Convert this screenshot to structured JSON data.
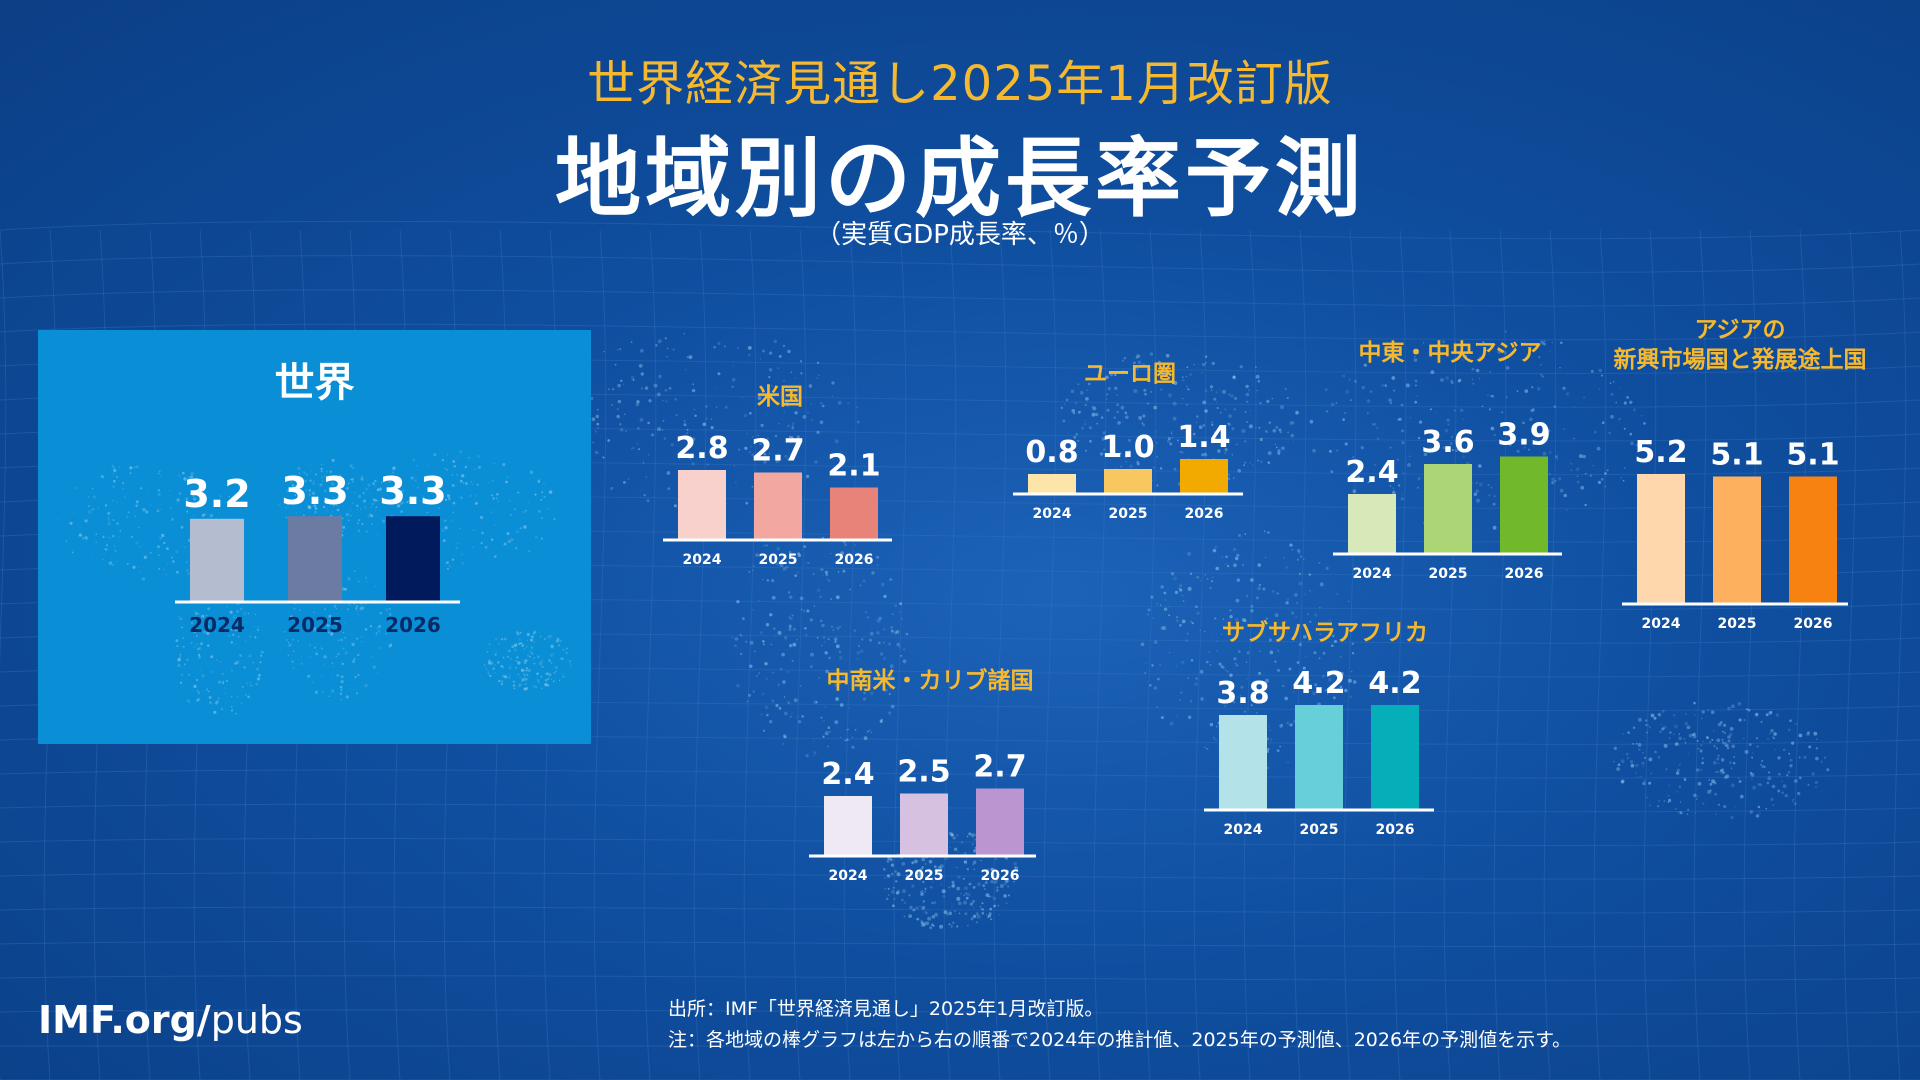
{
  "header": {
    "supertitle": "世界経済見通し2025年1月改訂版",
    "title": "地域別の成長率予測",
    "subtitle": "（実質GDP成長率、％）"
  },
  "footer": {
    "brand_bold": "IMF.org/",
    "brand_light": "pubs",
    "source": "出所：IMF「世界経済見通し」2025年1月改訂版。",
    "note": "注：各地域の棒グラフは左から右の順番で2024年の推計値、2025年の予測値、2026年の予測値を示す。"
  },
  "chart_data": [
    {
      "type": "bar",
      "id": "world",
      "title": "世界",
      "categories": [
        "2024",
        "2025",
        "2026"
      ],
      "values": [
        3.2,
        3.3,
        3.3
      ],
      "colors": [
        "#b4bccf",
        "#6b7ba1",
        "#001a5c"
      ]
    },
    {
      "type": "bar",
      "id": "us",
      "title": "米国",
      "categories": [
        "2024",
        "2025",
        "2026"
      ],
      "values": [
        2.8,
        2.7,
        2.1
      ],
      "colors": [
        "#f9d1cc",
        "#f2a7a1",
        "#e8837a"
      ]
    },
    {
      "type": "bar",
      "id": "euro",
      "title": "ユーロ圏",
      "categories": [
        "2024",
        "2025",
        "2026"
      ],
      "values": [
        0.8,
        1.0,
        1.4
      ],
      "colors": [
        "#fde4a9",
        "#f8c75e",
        "#f2a900"
      ]
    },
    {
      "type": "bar",
      "id": "mecca",
      "title": "中東・中央アジア",
      "categories": [
        "2024",
        "2025",
        "2026"
      ],
      "values": [
        2.4,
        3.6,
        3.9
      ],
      "colors": [
        "#d7e9b8",
        "#acd576",
        "#71b82a"
      ]
    },
    {
      "type": "bar",
      "id": "asia",
      "title": "アジアの\n新興市場国と発展途上国",
      "categories": [
        "2024",
        "2025",
        "2026"
      ],
      "values": [
        5.2,
        5.1,
        5.1
      ],
      "colors": [
        "#fed7ad",
        "#fdb05e",
        "#f88210"
      ]
    },
    {
      "type": "bar",
      "id": "latam",
      "title": "中南米・カリブ諸国",
      "categories": [
        "2024",
        "2025",
        "2026"
      ],
      "values": [
        2.4,
        2.5,
        2.7
      ],
      "colors": [
        "#efe9f6",
        "#d6c1e1",
        "#bb95cf"
      ]
    },
    {
      "type": "bar",
      "id": "ssa",
      "title": "サブサハラアフリカ",
      "categories": [
        "2024",
        "2025",
        "2026"
      ],
      "values": [
        3.8,
        4.2,
        4.2
      ],
      "colors": [
        "#b3e3e8",
        "#67cfd7",
        "#04afba"
      ]
    }
  ]
}
